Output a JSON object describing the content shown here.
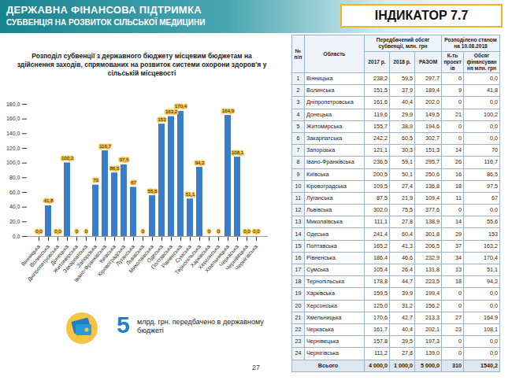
{
  "header": {
    "title": "ДЕРЖАВНА ФІНАНСОВА ПІДТРИМКА",
    "subtitle": "СУБВЕНЦІЯ НА РОЗВИТОК СІЛЬСЬКОЇ МЕДИЦИНИ",
    "indicator": "ІНДИКАТОР 7.7"
  },
  "chart_data": {
    "type": "bar",
    "title": "Розподіл субвенції з державного бюджету місцевим бюджетам на здійснення заходів, спрямованих на розвиток системи охорони здоров'я у сільській місцевості",
    "categories": [
      "Вінницька",
      "Волинська",
      "Дніпропетровська",
      "Донецька",
      "Житомирська",
      "Закарпатська",
      "Запорізька",
      "Івано-Франківська",
      "Київська",
      "Кіровоградська",
      "Луганська",
      "Львівська",
      "Миколаївська",
      "Одеська",
      "Полтавська",
      "Рівненська",
      "Сумська",
      "Тернопільська",
      "Харківська",
      "Херсонська",
      "Хмельницька",
      "Черкаська",
      "Чернівецька",
      "Чернігівська"
    ],
    "values": [
      0,
      41.8,
      0,
      100.2,
      0,
      0,
      70,
      116.7,
      86.5,
      97.5,
      67,
      0,
      55.6,
      153,
      163.2,
      170.4,
      51.1,
      94.2,
      0,
      0,
      164.9,
      108.1,
      0,
      0
    ],
    "value_labels": [
      "0,0",
      "41,8",
      "0,0",
      "100,2",
      "0",
      "0",
      "70",
      "116,7",
      "86,5",
      "97,5",
      "67",
      "0",
      "55,6",
      "153",
      "163,2",
      "170,4",
      "51,1",
      "94,2",
      "0",
      "0",
      "164,9",
      "108,1",
      "0,0",
      "0,0"
    ],
    "color": "#3a7dc9",
    "ylim": [
      0,
      180
    ],
    "yticks": [
      {
        "value": 0,
        "label": "0,0"
      },
      {
        "value": 20,
        "label": "20,0"
      },
      {
        "value": 40,
        "label": "40,0"
      },
      {
        "value": 60,
        "label": "60,0"
      },
      {
        "value": 80,
        "label": "80,0"
      },
      {
        "value": 100,
        "label": "100,0"
      },
      {
        "value": 120,
        "label": "120,0"
      },
      {
        "value": 140,
        "label": "140,0"
      },
      {
        "value": 160,
        "label": "160,0"
      },
      {
        "value": 180,
        "label": "180,0"
      }
    ],
    "grid": false,
    "data_labels": true
  },
  "table": {
    "header": [
      [
        "№ п/п",
        "Область",
        "Передбачений обсяг субвенції, млн. грн",
        "Розподілено станом на 10.08.2018"
      ],
      [
        "2017 р.",
        "2018 р.",
        "РАЗОМ",
        "К-ть проектів",
        "Обсяг фінансування млн. грн"
      ]
    ],
    "rows": [
      [
        "1",
        "Вінницька",
        "238,2",
        "59,5",
        "297,7",
        "0",
        "0,0"
      ],
      [
        "2",
        "Волинська",
        "151,5",
        "37,9",
        "189,4",
        "9",
        "41,8"
      ],
      [
        "3",
        "Дніпропетровська",
        "161,6",
        "40,4",
        "202,0",
        "0",
        "0,0"
      ],
      [
        "4",
        "Донецька",
        "119,6",
        "29,9",
        "149,5",
        "21",
        "100,2"
      ],
      [
        "5",
        "Житомирська",
        "155,7",
        "38,9",
        "194,6",
        "0",
        "0,0"
      ],
      [
        "6",
        "Закарпатська",
        "242,2",
        "60,5",
        "302,7",
        "0",
        "0,0"
      ],
      [
        "7",
        "Запорізька",
        "121,1",
        "30,3",
        "151,3",
        "14",
        "70"
      ],
      [
        "8",
        "Івано-Франківська",
        "236,5",
        "59,1",
        "295,7",
        "26",
        "116,7"
      ],
      [
        "9",
        "Київська",
        "200,5",
        "50,1",
        "250,6",
        "16",
        "86,5"
      ],
      [
        "10",
        "Кіровоградська",
        "109,5",
        "27,4",
        "136,8",
        "18",
        "97,5"
      ],
      [
        "11",
        "Луганська",
        "87,5",
        "21,9",
        "109,4",
        "11",
        "67"
      ],
      [
        "12",
        "Львівська",
        "302,0",
        "75,5",
        "377,6",
        "0",
        "0,0"
      ],
      [
        "13",
        "Миколаївська",
        "111,1",
        "27,8",
        "138,9",
        "14",
        "55,6"
      ],
      [
        "14",
        "Одеська",
        "241,4",
        "60,4",
        "301,8",
        "29",
        "153"
      ],
      [
        "15",
        "Полтавська",
        "165,2",
        "41,3",
        "206,5",
        "37",
        "163,2"
      ],
      [
        "16",
        "Рівненська",
        "186,4",
        "46,6",
        "232,9",
        "34",
        "170,4"
      ],
      [
        "17",
        "Сумська",
        "105,4",
        "26,4",
        "131,8",
        "13",
        "51,1"
      ],
      [
        "18",
        "Тернопільська",
        "178,8",
        "44,7",
        "223,5",
        "18",
        "94,2"
      ],
      [
        "19",
        "Харківська",
        "159,5",
        "39,9",
        "199,4",
        "0",
        "0,0"
      ],
      [
        "20",
        "Херсонська",
        "125,0",
        "31,2",
        "156,2",
        "0",
        "0,0"
      ],
      [
        "21",
        "Хмельницька",
        "170,6",
        "42,7",
        "213,3",
        "27",
        "164,9"
      ],
      [
        "22",
        "Черкаська",
        "161,7",
        "40,4",
        "202,1",
        "23",
        "108,1"
      ],
      [
        "23",
        "Чернівецька",
        "157,8",
        "39,5",
        "197,3",
        "0",
        "0,0"
      ],
      [
        "24",
        "Чернігівська",
        "111,2",
        "27,8",
        "139,0",
        "0",
        "0,0"
      ]
    ],
    "total": [
      "Всього",
      "4 000,0",
      "1 000,0",
      "5 000,0",
      "310",
      "1540,2"
    ]
  },
  "note": {
    "value": "5",
    "text": "млрд. грн. передбачено в державному бюджеті"
  },
  "page": "27"
}
